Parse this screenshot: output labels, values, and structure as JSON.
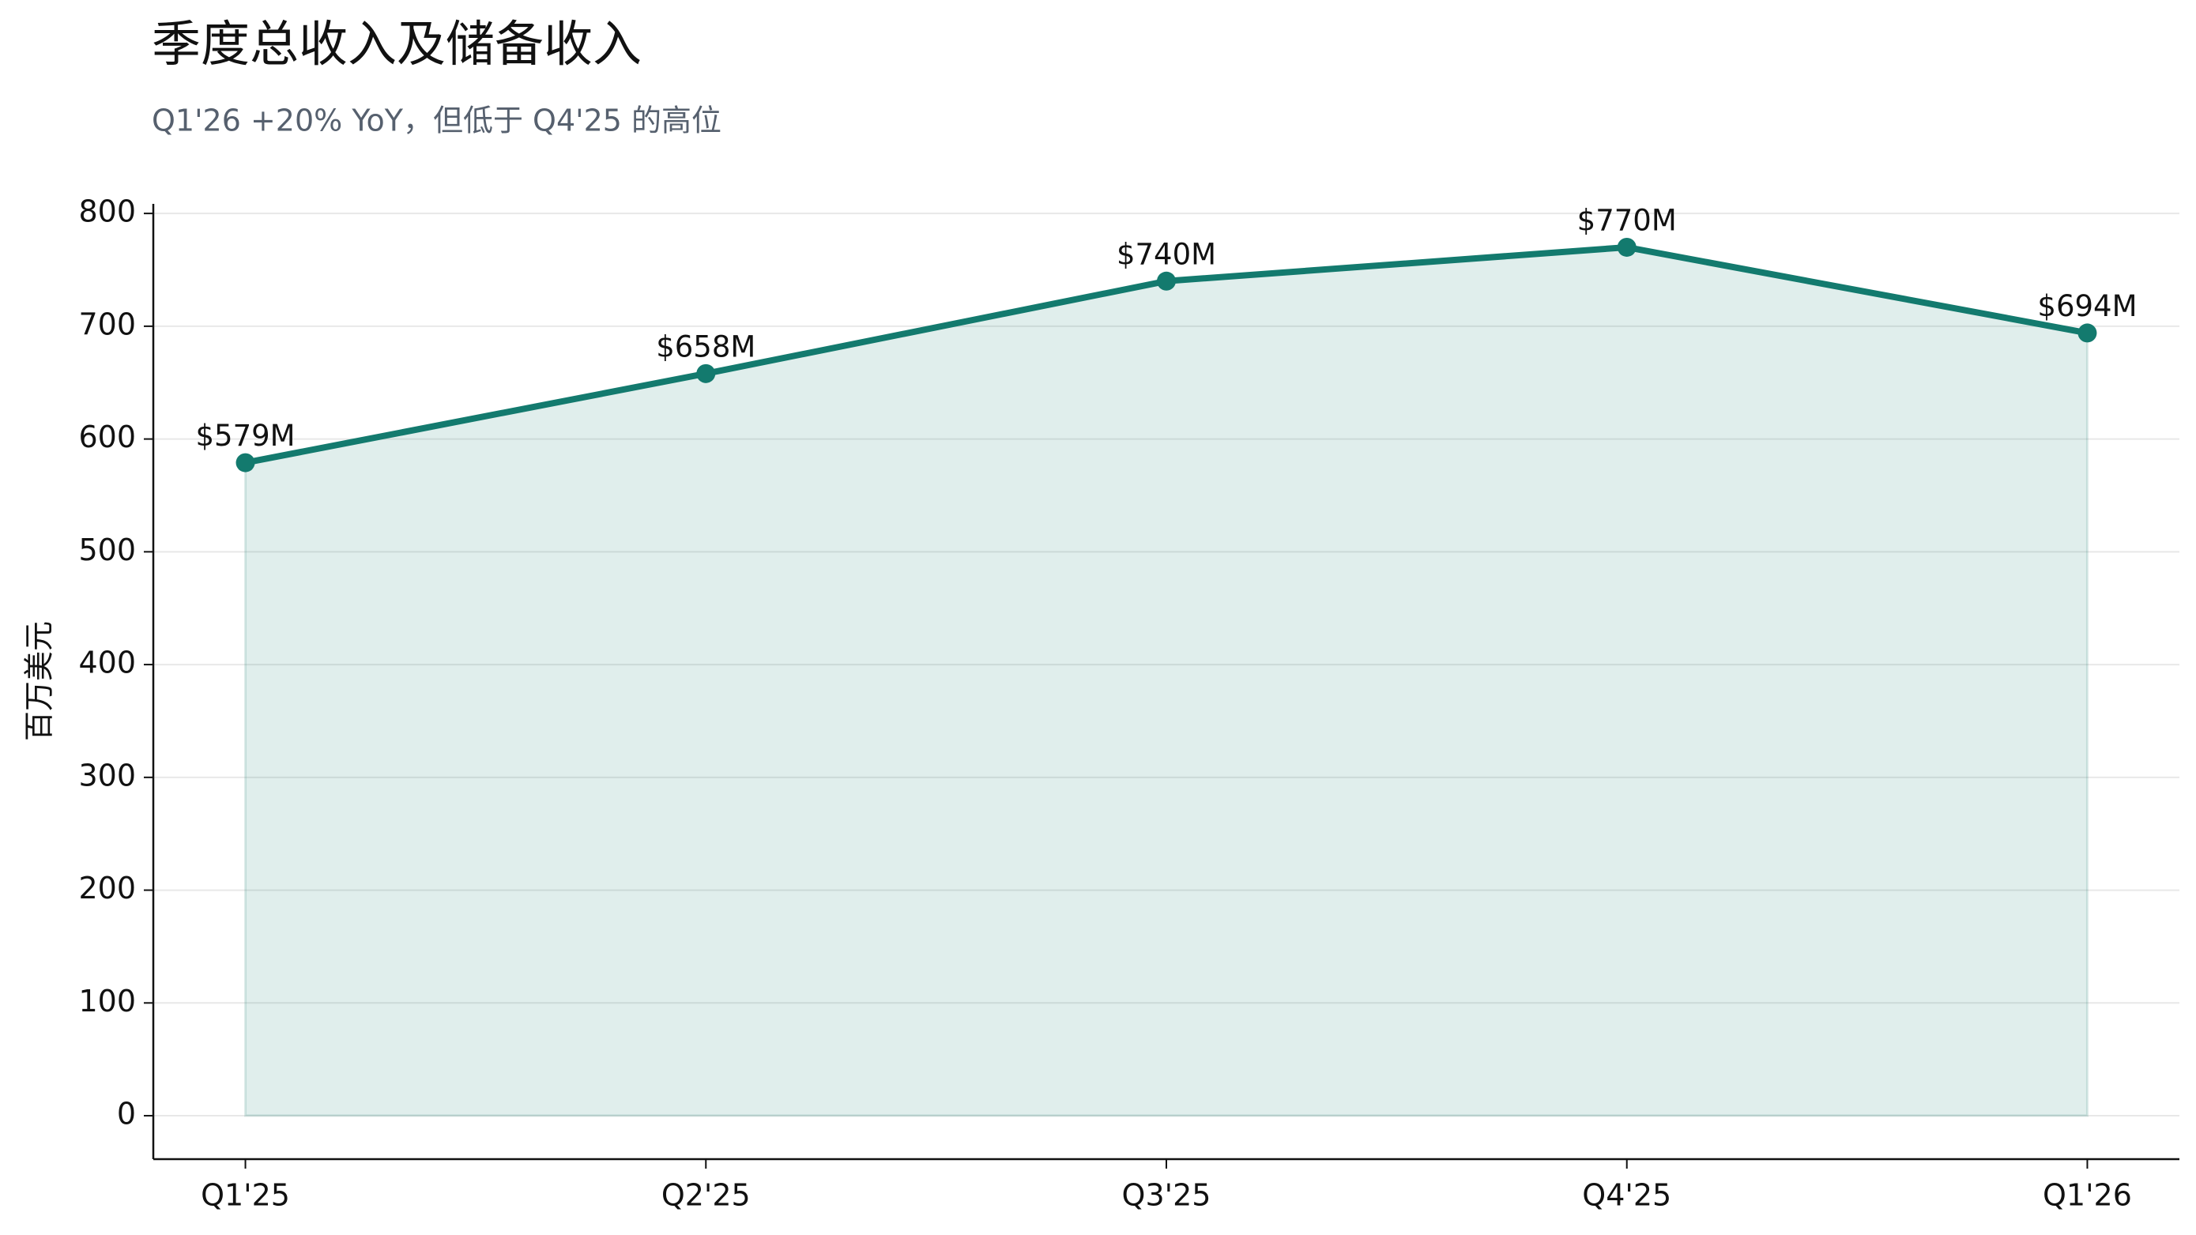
{
  "chart_data": {
    "type": "line",
    "title": "季度总收入及储备收入",
    "subtitle": "Q1'26 +20% YoY，但低于 Q4'25 的高位",
    "y_label": "百万美元",
    "categories": [
      "Q1'25",
      "Q2'25",
      "Q3'25",
      "Q4'25",
      "Q1'26"
    ],
    "values": [
      579,
      658,
      740,
      770,
      694
    ],
    "value_labels": [
      "$579M",
      "$658M",
      "$740M",
      "$770M",
      "$694M"
    ],
    "color": "#137a6e",
    "area": true,
    "ylim": [
      -38.5,
      808.5
    ],
    "yticks": [
      0,
      100,
      200,
      300,
      400,
      500,
      600,
      700,
      800
    ],
    "grid": true
  }
}
